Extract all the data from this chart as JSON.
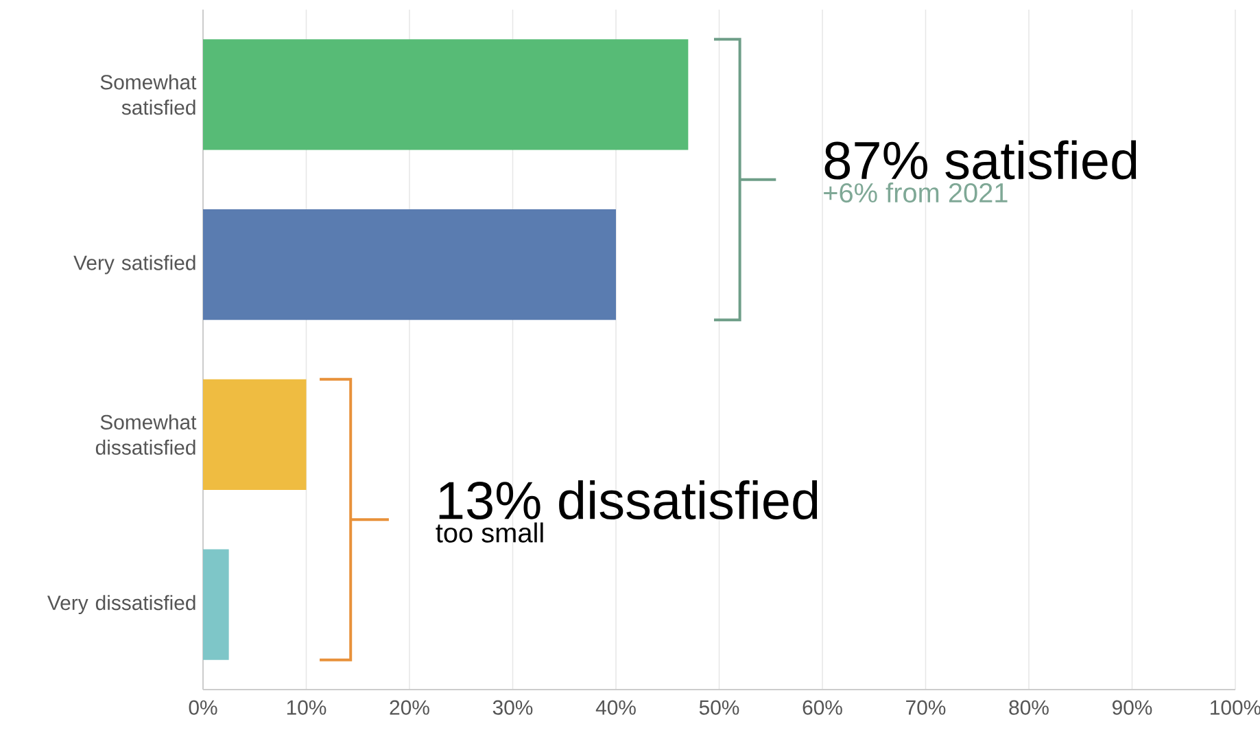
{
  "chart_data": {
    "type": "bar",
    "orientation": "horizontal",
    "categories": [
      "Somewhat satisfied",
      "Very satisfied",
      "Somewhat dissatisfied",
      "Very dissatisfied"
    ],
    "values": [
      47,
      40,
      10,
      2.5
    ],
    "colors": [
      "#57bb76",
      "#5a7cb0",
      "#efbc41",
      "#7ec6c8"
    ],
    "xlim": [
      0,
      100
    ],
    "xticks": [
      {
        "value": 0,
        "label": "0%"
      },
      {
        "value": 10,
        "label": "10%"
      },
      {
        "value": 20,
        "label": "20%"
      },
      {
        "value": 30,
        "label": "30%"
      },
      {
        "value": 40,
        "label": "40%"
      },
      {
        "value": 50,
        "label": "50%"
      },
      {
        "value": 60,
        "label": "60%"
      },
      {
        "value": 70,
        "label": "70%"
      },
      {
        "value": 80,
        "label": "80%"
      },
      {
        "value": 90,
        "label": "90%"
      },
      {
        "value": 100,
        "label": "100%"
      }
    ],
    "grid": "x",
    "annotations": [
      "87% satisfied",
      "+6% from 2021",
      "13% dissatisfied",
      "too small"
    ]
  }
}
